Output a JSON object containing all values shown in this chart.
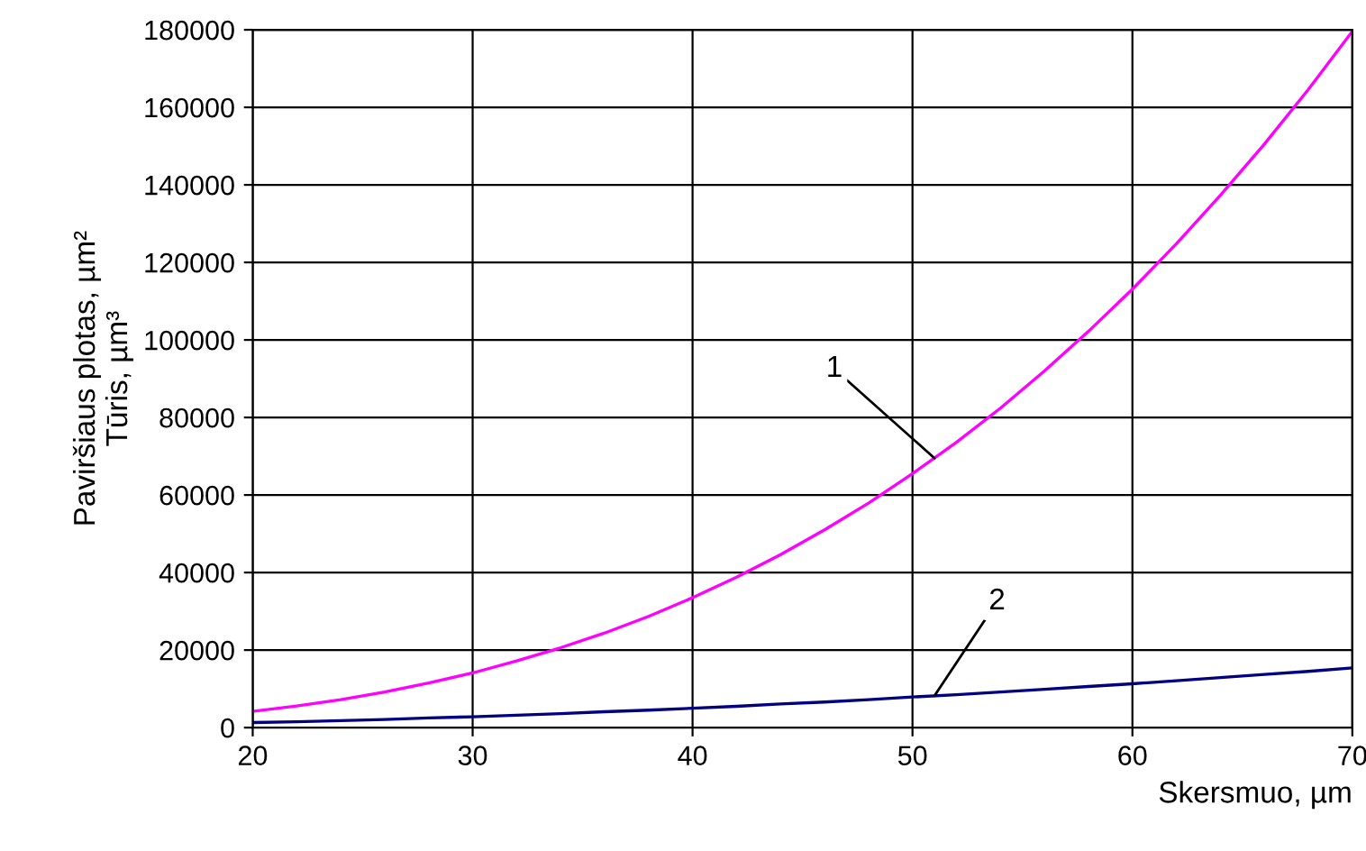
{
  "chart_data": {
    "type": "line",
    "xlabel": "Skersmuo, µm",
    "ylabel": "Paviršiaus plotas, µm²\nTūris, µm³",
    "x": [
      20,
      22,
      24,
      26,
      28,
      30,
      32,
      34,
      36,
      38,
      40,
      42,
      44,
      46,
      48,
      50,
      52,
      54,
      56,
      58,
      60,
      62,
      64,
      66,
      68,
      70
    ],
    "series": [
      {
        "color": "#ff00ff",
        "values": [
          4200,
          5600,
          7200,
          9200,
          11500,
          14100,
          17200,
          20600,
          24400,
          28700,
          33500,
          38800,
          44600,
          51000,
          57900,
          65500,
          73600,
          82400,
          92000,
          102200,
          113100,
          124800,
          137300,
          150500,
          164600,
          179600
        ]
      },
      {
        "color": "#000080",
        "values": [
          1300,
          1500,
          1800,
          2100,
          2500,
          2800,
          3200,
          3600,
          4100,
          4500,
          5000,
          5500,
          6100,
          6600,
          7200,
          7900,
          8500,
          9200,
          9900,
          10600,
          11300,
          12100,
          12900,
          13700,
          14500,
          15400
        ]
      }
    ],
    "annotations": [
      {
        "text": "1",
        "x": 51,
        "y": 69500
      },
      {
        "text": "2",
        "x": 51,
        "y": 8200
      }
    ],
    "xlim": [
      20,
      70
    ],
    "xticks": [
      20,
      30,
      40,
      50,
      60,
      70
    ],
    "ylim": [
      0,
      180000
    ],
    "yticks": [
      0,
      20000,
      40000,
      60000,
      80000,
      100000,
      120000,
      140000,
      160000,
      180000
    ],
    "grid": true,
    "marker": "none",
    "line_style": "solid",
    "legend": false
  }
}
